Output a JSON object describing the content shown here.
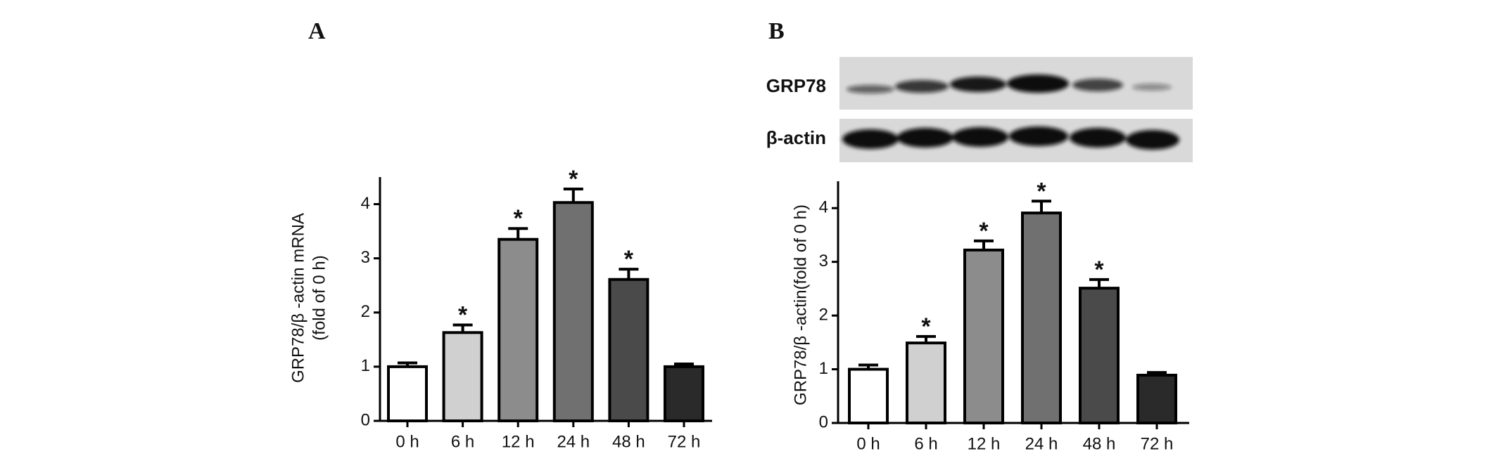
{
  "chart_data": [
    {
      "type": "bar",
      "panel_label": "A",
      "ylabel": [
        "GRP78/β -actin mRNA",
        "(fold of 0 h)"
      ],
      "categories": [
        "0 h",
        "6 h",
        "12 h",
        "24 h",
        "48 h",
        "72 h"
      ],
      "values": [
        1.0,
        1.63,
        3.35,
        4.03,
        2.61,
        1.0
      ],
      "errors": [
        0.07,
        0.14,
        0.2,
        0.25,
        0.19,
        0.05
      ],
      "significance": [
        null,
        "*",
        "*",
        "*",
        "*",
        null
      ],
      "colors": [
        "#ffffff",
        "#d0d0d0",
        "#8c8c8c",
        "#707070",
        "#4a4a4a",
        "#2a2a2a"
      ],
      "ylim": [
        0,
        4.5
      ],
      "yticks": [
        0,
        1,
        2,
        3,
        4
      ]
    },
    {
      "type": "bar",
      "panel_label": "B",
      "blot": {
        "rows": [
          "GRP78",
          "β-actin"
        ]
      },
      "ylabel": [
        "GRP78/β -actin(fold of 0 h)"
      ],
      "categories": [
        "0 h",
        "6 h",
        "12 h",
        "24 h",
        "48 h",
        "72 h"
      ],
      "values": [
        1.0,
        1.49,
        3.22,
        3.91,
        2.51,
        0.89
      ],
      "errors": [
        0.08,
        0.12,
        0.17,
        0.22,
        0.16,
        0.05
      ],
      "significance": [
        null,
        "*",
        "*",
        "*",
        "*",
        null
      ],
      "colors": [
        "#ffffff",
        "#d0d0d0",
        "#8c8c8c",
        "#707070",
        "#4a4a4a",
        "#2a2a2a"
      ],
      "ylim": [
        0,
        4.5
      ],
      "yticks": [
        0,
        1,
        2,
        3,
        4
      ]
    }
  ]
}
